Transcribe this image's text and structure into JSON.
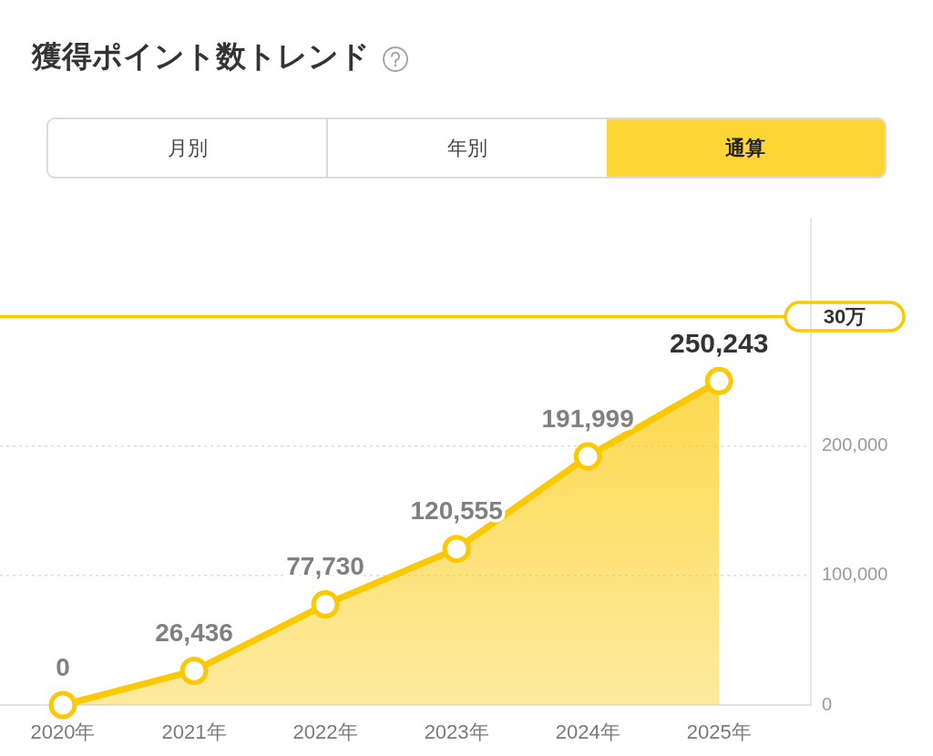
{
  "chart_data": {
    "type": "area",
    "title": "獲得ポイント数トレンド",
    "categories": [
      "2020年",
      "2021年",
      "2022年",
      "2023年",
      "2024年",
      "2025年"
    ],
    "values": [
      0,
      26436,
      77730,
      120555,
      191999,
      250243
    ],
    "value_labels": [
      "0",
      "26,436",
      "77,730",
      "120,555",
      "191,999",
      "250,243"
    ],
    "color": "#fcc800",
    "marker": "circle",
    "ylim": [
      0,
      375000
    ],
    "yticks": [
      0,
      {
        "value": 100000,
        "label": "100,000"
      },
      {
        "value": 200000,
        "label": "200,000"
      }
    ],
    "grid": "y",
    "ref_lines": [
      {
        "axis": "y",
        "value": 300000,
        "label": "30万"
      }
    ],
    "annotations": [
      "月別",
      "年別",
      "通算"
    ]
  }
}
